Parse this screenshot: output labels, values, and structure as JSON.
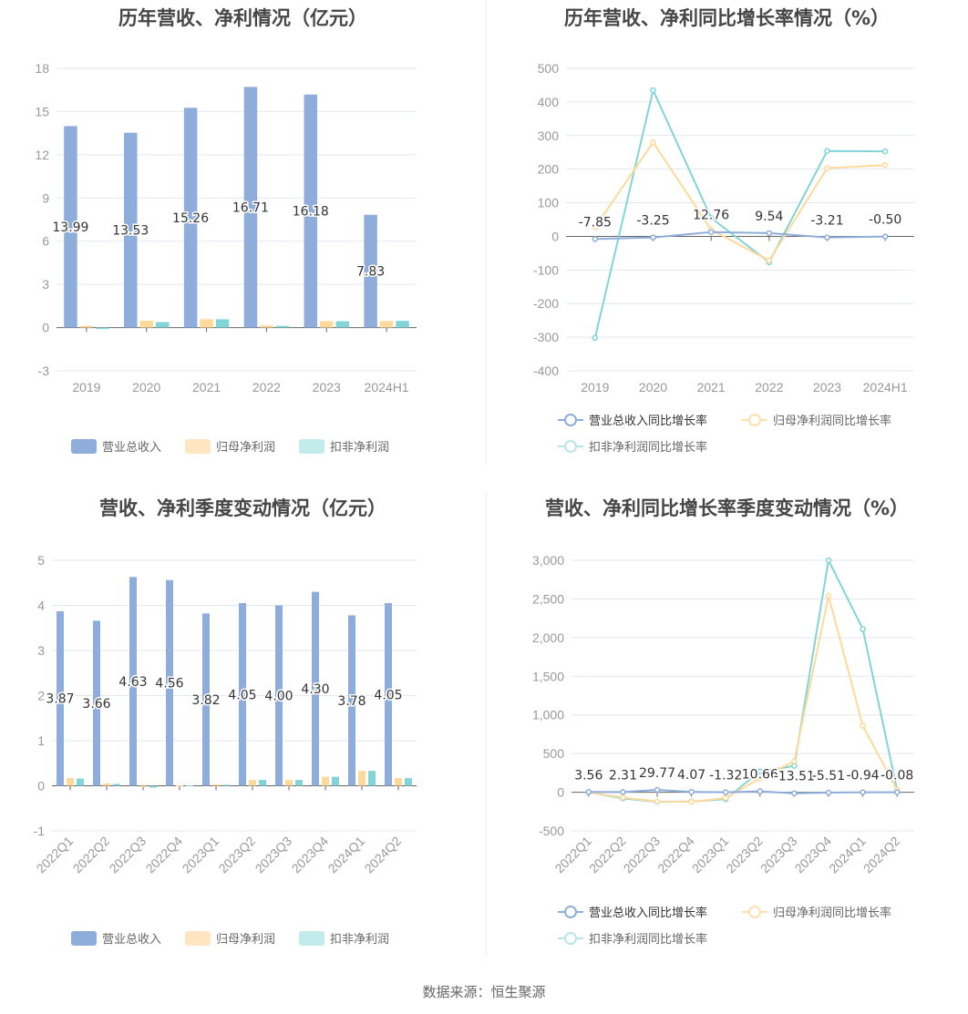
{
  "colors": {
    "revenue": "#8eadda",
    "net": "#ffd99a",
    "deducted": "#82d4d6",
    "grid": "#e3e7f0",
    "axis": "#666666",
    "tick_text": "#999999"
  },
  "source": "数据来源：恒生聚源",
  "chart_data": [
    {
      "id": "annual-bars",
      "type": "bar",
      "title": "历年营收、净利情况（亿元）",
      "categories": [
        "2019",
        "2020",
        "2021",
        "2022",
        "2023",
        "2024H1"
      ],
      "ylim": [
        -3,
        18
      ],
      "yticks": [
        -3,
        0,
        3,
        6,
        9,
        12,
        15,
        18
      ],
      "grid": true,
      "legend": "bottom",
      "series": [
        {
          "name": "营业总收入",
          "values": [
            13.99,
            13.53,
            15.26,
            16.71,
            16.18,
            7.83
          ],
          "labels": [
            "13.99",
            "13.53",
            "15.26",
            "16.71",
            "16.18",
            "7.83"
          ]
        },
        {
          "name": "归母净利润",
          "values": [
            0.12,
            0.48,
            0.58,
            0.15,
            0.45,
            0.46
          ]
        },
        {
          "name": "扣非净利润",
          "values": [
            -0.1,
            0.38,
            0.58,
            0.12,
            0.44,
            0.47
          ]
        }
      ]
    },
    {
      "id": "annual-growth",
      "type": "line",
      "title": "历年营收、净利同比增长率情况（%）",
      "categories": [
        "2019",
        "2020",
        "2021",
        "2022",
        "2023",
        "2024H1"
      ],
      "ylim": [
        -400,
        500
      ],
      "yticks": [
        -400,
        -300,
        -200,
        -100,
        0,
        100,
        200,
        300,
        400,
        500
      ],
      "grid": true,
      "legend": "bottom",
      "series": [
        {
          "name": "营业总收入同比增长率",
          "values": [
            -7.85,
            -3.25,
            12.76,
            9.54,
            -3.21,
            -0.5
          ],
          "labels": [
            "-7.85",
            "-3.25",
            "12.76",
            "9.54",
            "-3.21",
            "-0.50"
          ]
        },
        {
          "name": "归母净利润同比增长率",
          "values": [
            27,
            280,
            20,
            -72,
            203,
            212
          ]
        },
        {
          "name": "扣非净利润同比增长率",
          "values": [
            -302,
            435,
            55,
            -77,
            254,
            253
          ]
        }
      ]
    },
    {
      "id": "quarter-bars",
      "type": "bar",
      "title": "营收、净利季度变动情况（亿元）",
      "categories": [
        "2022Q1",
        "2022Q2",
        "2022Q3",
        "2022Q4",
        "2023Q1",
        "2023Q2",
        "2023Q3",
        "2023Q4",
        "2024Q1",
        "2024Q2"
      ],
      "ylim": [
        -1,
        5
      ],
      "yticks": [
        -1,
        0,
        1,
        2,
        3,
        4,
        5
      ],
      "grid": true,
      "legend": "bottom",
      "series": [
        {
          "name": "营业总收入",
          "values": [
            3.87,
            3.66,
            4.63,
            4.56,
            3.82,
            4.05,
            4.0,
            4.3,
            3.78,
            4.05
          ],
          "labels": [
            "3.87",
            "3.66",
            "4.63",
            "4.56",
            "3.82",
            "4.05",
            "4.00",
            "4.30",
            "3.78",
            "4.05"
          ]
        },
        {
          "name": "归母净利润",
          "values": [
            0.17,
            0.05,
            -0.03,
            0.01,
            0.03,
            0.13,
            0.13,
            0.2,
            0.33,
            0.17
          ]
        },
        {
          "name": "扣非净利润",
          "values": [
            0.16,
            0.04,
            -0.04,
            0.01,
            0.02,
            0.13,
            0.13,
            0.2,
            0.33,
            0.17
          ]
        }
      ]
    },
    {
      "id": "quarter-growth",
      "type": "line",
      "title": "营收、净利同比增长率季度变动情况（%）",
      "categories": [
        "2022Q1",
        "2022Q2",
        "2022Q3",
        "2022Q4",
        "2023Q1",
        "2023Q2",
        "2023Q3",
        "2023Q4",
        "2024Q1",
        "2024Q2"
      ],
      "ylim": [
        -500,
        3000
      ],
      "yticks": [
        -500,
        0,
        500,
        1000,
        1500,
        2000,
        2500,
        3000
      ],
      "yticklabels": [
        "-500",
        "0",
        "500",
        "1,000",
        "1,500",
        "2,000",
        "2,500",
        "3,000"
      ],
      "grid": true,
      "legend": "bottom",
      "series": [
        {
          "name": "营业总收入同比增长率",
          "values": [
            3.56,
            2.31,
            29.77,
            4.07,
            -1.32,
            10.66,
            -13.51,
            -5.51,
            -0.94,
            -0.08
          ],
          "labels": [
            "3.56",
            "2.31",
            "29.77",
            "4.07",
            "-1.32",
            "10.66",
            "-13.51",
            "-5.51",
            "-0.94",
            "-0.08"
          ]
        },
        {
          "name": "归母净利润同比增长率",
          "values": [
            0,
            -70,
            -120,
            -125,
            -75,
            180,
            400,
            2540,
            860,
            30
          ]
        },
        {
          "name": "扣非净利润同比增长率",
          "values": [
            0,
            -80,
            -125,
            -120,
            -90,
            270,
            340,
            3000,
            2110,
            30
          ]
        }
      ]
    }
  ]
}
